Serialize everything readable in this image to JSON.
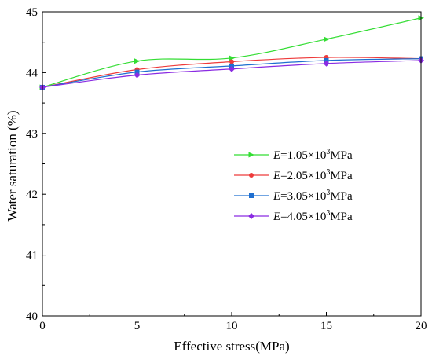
{
  "chart_data": {
    "type": "line",
    "xlabel": "Effective stress(MPa)",
    "ylabel": "Water saturation (%)",
    "xlim": [
      0,
      20
    ],
    "ylim": [
      40,
      45
    ],
    "xticks": [
      0,
      5,
      10,
      15,
      20
    ],
    "yticks": [
      40,
      41,
      42,
      43,
      44,
      45
    ],
    "grid": false,
    "legend_position": "center-right",
    "x": [
      0,
      5,
      10,
      15,
      20
    ],
    "series": [
      {
        "name": "E=1.05×10³MPa",
        "label_var": "E",
        "label_mid": "=1.05×10",
        "label_sup": "3",
        "label_unit": "MPa",
        "color": "#33dd33",
        "marker": "triangle-right",
        "values": [
          43.76,
          44.19,
          44.24,
          44.55,
          44.9
        ]
      },
      {
        "name": "E=2.05×10³MPa",
        "label_var": "E",
        "label_mid": "=2.05×10",
        "label_sup": "3",
        "label_unit": "MPa",
        "color": "#ee3a3a",
        "marker": "circle",
        "values": [
          43.76,
          44.05,
          44.18,
          44.25,
          44.23
        ]
      },
      {
        "name": "E=3.05×10³MPa",
        "label_var": "E",
        "label_mid": "=3.05×10",
        "label_sup": "3",
        "label_unit": "MPa",
        "color": "#1f6fd0",
        "marker": "square",
        "values": [
          43.76,
          44.01,
          44.11,
          44.2,
          44.23
        ]
      },
      {
        "name": "E=4.05×10³MPa",
        "label_var": "E",
        "label_mid": "=4.05×10",
        "label_sup": "3",
        "label_unit": "MPa",
        "color": "#8a2be2",
        "marker": "diamond",
        "values": [
          43.76,
          43.96,
          44.06,
          44.15,
          44.2
        ]
      }
    ]
  }
}
